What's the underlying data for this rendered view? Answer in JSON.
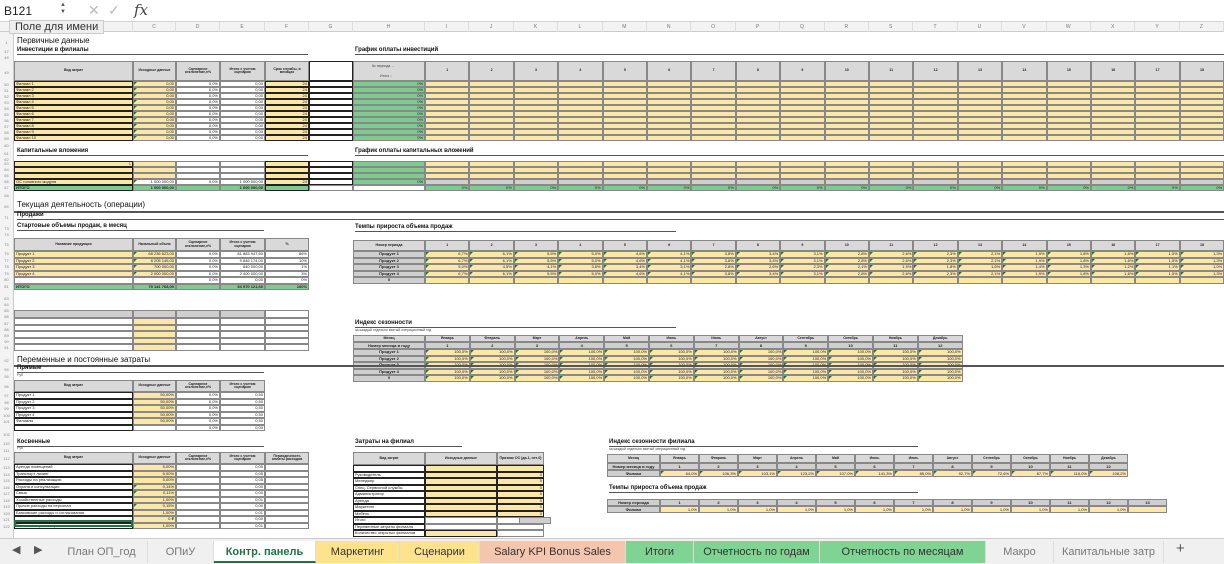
{
  "formula_bar": {
    "name_box": "B121",
    "tooltip": "Поле для имени",
    "cancel": "✕",
    "enter": "✓",
    "fx": "fx"
  },
  "columns": [
    "C",
    "D",
    "E",
    "F",
    "G",
    "H",
    "I",
    "J",
    "K",
    "L",
    "M",
    "N",
    "O",
    "P",
    "Q",
    "R",
    "S",
    "T",
    "U",
    "V",
    "W",
    "X",
    "Y",
    "Z"
  ],
  "row_headers": [
    "1",
    "47",
    "48",
    "49",
    "50",
    "51",
    "52",
    "53",
    "54",
    "55",
    "56",
    "57",
    "58",
    "59",
    "60",
    "61",
    "62",
    "63",
    "64",
    "65",
    "66",
    "67",
    "68",
    "69",
    "71",
    "73",
    "74",
    "75",
    "76",
    "77",
    "78",
    "79",
    "80",
    "81",
    "83",
    "84",
    "85",
    "86",
    "87",
    "88",
    "89",
    "90",
    "91",
    "92",
    "94",
    "95",
    "96",
    "97",
    "98",
    "99",
    "100",
    "101",
    "102",
    "110",
    "111",
    "112",
    "113",
    "114",
    "115",
    "116",
    "117",
    "118",
    "119",
    "120",
    "121",
    "122"
  ],
  "primary_title": "Первичные данные",
  "invest": {
    "title": "Инвестиции в филиалы",
    "headers": [
      "Вид затрат",
      "Исходные данные",
      "Сценарное отклонение,±%",
      "Итого с учетом сценария",
      "Срок службы, в месяцах"
    ],
    "rows": [
      [
        "Филиал 1",
        "0,00",
        "0,0%",
        "0,00",
        "24"
      ],
      [
        "Филиал 2",
        "0,00",
        "0,0%",
        "0,00",
        "24"
      ],
      [
        "Филиал 3",
        "0,00",
        "0,0%",
        "0,00",
        "24"
      ],
      [
        "Филиал 4",
        "0,00",
        "0,0%",
        "0,00",
        "24"
      ],
      [
        "Филиал 5",
        "0,00",
        "0,0%",
        "0,00",
        "24"
      ],
      [
        "Филиал 6",
        "0,00",
        "0,0%",
        "0,00",
        "24"
      ],
      [
        "Филиал 7",
        "0,00",
        "0,0%",
        "0,00",
        "24"
      ],
      [
        "Филиал 8",
        "0,00",
        "0,0%",
        "0,00",
        "24"
      ],
      [
        "Филиал 9",
        "0,00",
        "0,0%",
        "0,00",
        "24"
      ],
      [
        "Филиал 10",
        "0,00",
        "0,0%",
        "0,00",
        "24"
      ]
    ]
  },
  "invest_schedule": {
    "title": "График оплаты инвестиций",
    "period_label": "№ периода →",
    "total_label": "Итого ↓",
    "periods": [
      "1",
      "2",
      "3",
      "4",
      "5",
      "6",
      "7",
      "8",
      "9",
      "10",
      "11",
      "12",
      "13",
      "14",
      "15",
      "16",
      "17",
      "18"
    ],
    "totals": [
      "0%",
      "0%",
      "0%",
      "0%",
      "0%",
      "0%",
      "0%",
      "0%",
      "0%",
      "0%"
    ]
  },
  "capex": {
    "title": "Капитальные вложения",
    "first_row_value": "1",
    "row": [
      "ОС головного модуля",
      "1 000 000,00",
      "0,0%",
      "1 000 000,00",
      "24"
    ],
    "total": [
      "ИТОГО",
      "1 000 000,00",
      "1 000 000,00"
    ]
  },
  "capex_schedule": {
    "title": "График оплаты капитальных вложений",
    "row_total": "0%",
    "period_total": "0%"
  },
  "ops": {
    "title": "Текущая деятельность (операции)",
    "sales": "Продажи",
    "start_title": "Стартовые объемы продаж, в месяц"
  },
  "sales": {
    "headers": [
      "Название продукции",
      "Начальный объем",
      "Сценарное отклонение,±%",
      "Итого с учетом сценария",
      "%"
    ],
    "rows": [
      [
        "Продукт 1",
        "68 236 623,00",
        "0,0%",
        "81 883 947,60",
        "86%"
      ],
      [
        "Продукт 2",
        "8 205 145,00",
        "0,0%",
        "9 846 174,00",
        "10%"
      ],
      [
        "Продукт 3",
        "700 000,00",
        "0,0%",
        "840 000,00",
        "1%"
      ],
      [
        "Продукт 4",
        "2 000 000,00",
        "0,0%",
        "2 400 000,00",
        "3%"
      ],
      [
        "",
        "",
        "0,0%",
        "0,00",
        "0%"
      ]
    ],
    "total": [
      "ИТОГО",
      "79 141 768,00",
      "",
      "94 970 121,60",
      "100%"
    ]
  },
  "growth": {
    "title": "Темпы прироста объема продаж",
    "header": "Номер периода",
    "periods": [
      "1",
      "2",
      "3",
      "4",
      "5",
      "6",
      "7",
      "8",
      "9",
      "10",
      "11",
      "12",
      "13",
      "14",
      "15",
      "16",
      "17",
      "18"
    ],
    "rows": [
      {
        "label": "Продукт 1",
        "values": [
          "6,7%",
          "6,1%",
          "5,5%",
          "5,0%",
          "4,6%",
          "4,1%",
          "3,8%",
          "3,4%",
          "3,1%",
          "2,8%",
          "2,6%",
          "2,3%",
          "2,1%",
          "1,9%",
          "1,8%",
          "1,6%",
          "1,5%",
          "1,3%"
        ]
      },
      {
        "label": "Продукт 2",
        "values": [
          "6,7%",
          "6,1%",
          "5,5%",
          "5,0%",
          "4,6%",
          "4,1%",
          "3,8%",
          "3,4%",
          "3,1%",
          "2,8%",
          "2,6%",
          "2,3%",
          "2,1%",
          "1,9%",
          "1,8%",
          "1,6%",
          "1,5%",
          "1,3%"
        ]
      },
      {
        "label": "Продукт 3",
        "values": [
          "5,0%",
          "4,5%",
          "4,1%",
          "3,8%",
          "3,4%",
          "3,1%",
          "2,8%",
          "2,6%",
          "2,3%",
          "2,1%",
          "1,9%",
          "1,8%",
          "1,6%",
          "1,4%",
          "1,3%",
          "1,2%",
          "1,1%",
          "1,0%"
        ]
      },
      {
        "label": "Продукт 4",
        "values": [
          "6,7%",
          "6,1%",
          "5,5%",
          "5,0%",
          "4,6%",
          "4,1%",
          "3,8%",
          "3,4%",
          "3,1%",
          "2,8%",
          "2,6%",
          "2,3%",
          "2,1%",
          "1,9%",
          "1,8%",
          "1,6%",
          "1,5%",
          "1,3%"
        ]
      },
      {
        "label": "0",
        "values": [
          "",
          "",
          "",
          "",
          "",
          "",
          "",
          "",
          "",
          "",
          "",
          "",
          "",
          "",
          "",
          "",
          "",
          ""
        ]
      }
    ]
  },
  "season": {
    "title": "Индекс сезонности",
    "subtitle": "за каждый отдельно взятый операционный год",
    "month_label": "Месяц",
    "num_label": "Номер месяца в году",
    "months": [
      "Январь",
      "Февраль",
      "Март",
      "Апрель",
      "Май",
      "Июнь",
      "Июль",
      "Август",
      "Сентябрь",
      "Октябрь",
      "Ноябрь",
      "Декабрь"
    ],
    "nums": [
      "1",
      "2",
      "3",
      "4",
      "5",
      "6",
      "7",
      "8",
      "9",
      "10",
      "11",
      "12"
    ],
    "rows": [
      "Продукт 1",
      "Продукт 2",
      "Продукт 3",
      "Продукт 4",
      "0"
    ],
    "value": "100,0%"
  },
  "costs": {
    "title": "Переменные и постоянные затраты",
    "direct": "Прямые",
    "unit": "Руб",
    "headers": [
      "Вид затрат",
      "Исходные данные",
      "Сценарное отклонение,±%",
      "Итого с учетом сценария"
    ],
    "rows": [
      [
        "Продукт 1",
        "50,00%",
        "0,0%",
        "0,50"
      ],
      [
        "Продукт 2",
        "50,00%",
        "0,0%",
        "0,50"
      ],
      [
        "Продукт 3",
        "50,00%",
        "0,0%",
        "0,50"
      ],
      [
        "Продукт 4",
        "50,00%",
        "0,0%",
        "0,50"
      ],
      [
        "Филиалы",
        "50,00%",
        "0,0%",
        "0,50"
      ],
      [
        "",
        "",
        "0,0%",
        "0,00"
      ]
    ]
  },
  "indirect": {
    "title": "Косвенные",
    "unit": "Руб",
    "headers": [
      "Вид затрат",
      "Исходные данные",
      "Сценарное отклонение,±%",
      "Итого с учетом сценария",
      "Периодичность оплаты расходов"
    ],
    "rows": [
      [
        "Аренда помещений",
        "5,00%",
        "",
        "0,05",
        ""
      ],
      [
        "Транспорт лизинг",
        "5,00%",
        "",
        "0,05",
        ""
      ],
      [
        "Расходы на реализацию",
        "5,00%",
        "",
        "0,05",
        ""
      ],
      [
        "Охрана и консультации",
        "0,14%",
        "",
        "0,00",
        ""
      ],
      [
        "Связь",
        "0,11%",
        "",
        "0,00",
        ""
      ],
      [
        "Хозяйственные расходы",
        "1,00%",
        "",
        "0,01",
        ""
      ],
      [
        "Прочие расходы на персонал",
        "0,15%",
        "",
        "0,00",
        ""
      ],
      [
        "Банковские расходы и согласования",
        "1,00%",
        "",
        "0,01",
        ""
      ],
      [
        "",
        "0 ₽",
        "",
        "0,00",
        ""
      ],
      [
        "Реклама и промоакции",
        "1,00%",
        "",
        "0,01",
        ""
      ]
    ]
  },
  "branch_costs": {
    "title": "Затраты на филиал",
    "headers": [
      "Вид затрат",
      "Исходные данные",
      "Признак ОС (да-1, нет-0)"
    ],
    "rows": [
      [
        "",
        "",
        ""
      ],
      [
        "Руководитель",
        "",
        "0"
      ],
      [
        "Менеджер",
        "",
        "0"
      ],
      [
        "Спец. Сервисной службы",
        "",
        "0"
      ],
      [
        "Администратор",
        "",
        "0"
      ],
      [
        "Аренда",
        "",
        "0"
      ],
      [
        "Маркетинг",
        "",
        "0"
      ],
      [
        "Мебель",
        "",
        "0"
      ],
      [
        "Итого",
        "",
        "0%"
      ],
      [
        "Переменные затраты филиала",
        "",
        ""
      ],
      [
        "Количество открытых филиалов",
        "",
        ""
      ]
    ]
  },
  "branch_season": {
    "title": "Индекс сезонности филиала",
    "subtitle": "за каждый отдельно взятый операционный год",
    "month_label": "Месяц",
    "num_label": "Номер месяца в году",
    "row_label": "Филиал",
    "values": [
      "64,0%",
      "106,3%",
      "103,1%",
      "123,2%",
      "107,0%",
      "141,3%",
      "85,0%",
      "92,7%",
      "72,6%",
      "87,7%",
      "116,0%",
      "108,2%"
    ]
  },
  "branch_growth": {
    "title": "Темпы прироста объема продаж",
    "header": "Номер периода",
    "row_label": "Филиал",
    "periods": [
      "1",
      "2",
      "3",
      "4",
      "5",
      "6",
      "7",
      "8",
      "9",
      "10",
      "11",
      "12",
      "13"
    ],
    "values": [
      "1,0%",
      "1,0%",
      "1,0%",
      "1,0%",
      "1,0%",
      "1,0%",
      "1,0%",
      "1,0%",
      "1,0%",
      "1,0%",
      "1,0%",
      "1,0%",
      ""
    ]
  },
  "tabs": [
    {
      "label": "План ОП_год",
      "color": "#f0f0f0",
      "active": false
    },
    {
      "label": "ОПиУ",
      "color": "#f0f0f0",
      "active": false
    },
    {
      "label": "Контр. панель",
      "color": "#ffffff",
      "active": true
    },
    {
      "label": "Маркетинг",
      "color": "#ffe38c",
      "active": false
    },
    {
      "label": "Сценарии",
      "color": "#ffe38c",
      "active": false
    },
    {
      "label": "Salary KPI Bonus Sales",
      "color": "#f5c6ae",
      "active": false
    },
    {
      "label": "Итоги",
      "color": "#7fd393",
      "active": false
    },
    {
      "label": "Отчетность по годам",
      "color": "#7fd393",
      "active": false
    },
    {
      "label": "Отчетность по месяцам",
      "color": "#7fd393",
      "active": false
    },
    {
      "label": "Макро",
      "color": "#f0f0f0",
      "active": false
    },
    {
      "label": "Капитальные затр",
      "color": "#f0f0f0",
      "active": false
    }
  ],
  "tab_nav": {
    "prev": "◀",
    "next": "▶",
    "add": "+"
  }
}
